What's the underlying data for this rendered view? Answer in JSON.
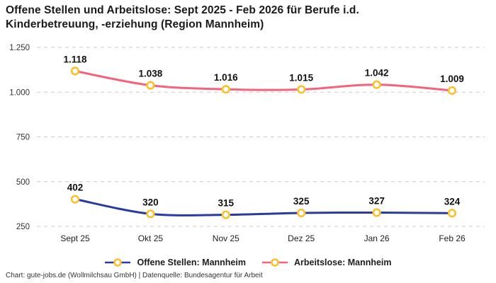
{
  "header": {
    "title_line1": "Offene Stellen und Arbeitslose: Sept 2025 - Feb 2026 für Berufe i.d.",
    "title_line2": "Kinderbetreuung, -erziehung (Region Mannheim)"
  },
  "footer": {
    "credit": "Chart: gute-jobs.de (Wollmilchsau GmbH) | Datenquelle: Bundesagentur für Arbeit"
  },
  "style": {
    "marker_color": "#fbc02d",
    "grid_color": "#c9c9c9",
    "text_color": "#1d1d1d",
    "background": "#ffffff"
  },
  "chart_data": {
    "type": "line",
    "title": "Offene Stellen und Arbeitslose: Sept 2025 - Feb 2026 für Berufe i.d. Kinderbetreuung, -erziehung (Region Mannheim)",
    "categories": [
      "Sept 25",
      "Okt 25",
      "Nov 25",
      "Dez 25",
      "Jan 26",
      "Feb 26"
    ],
    "series": [
      {
        "id": "offene-stellen",
        "name": "Offene Stellen: Mannheim",
        "color": "#2a3b9e",
        "values": [
          402,
          320,
          315,
          325,
          327,
          324
        ],
        "value_labels": [
          "402",
          "320",
          "315",
          "325",
          "327",
          "324"
        ]
      },
      {
        "id": "arbeitslose",
        "name": "Arbeitslose: Mannheim",
        "color": "#f5627b",
        "values": [
          1118,
          1038,
          1016,
          1015,
          1042,
          1009
        ],
        "value_labels": [
          "1.118",
          "1.038",
          "1.016",
          "1.015",
          "1.042",
          "1.009"
        ]
      }
    ],
    "yticks": [
      {
        "value": 250,
        "label": "250"
      },
      {
        "value": 500,
        "label": "500"
      },
      {
        "value": 750,
        "label": "750"
      },
      {
        "value": 1000,
        "label": "1.000"
      },
      {
        "value": 1250,
        "label": "1.250"
      }
    ],
    "ylim": [
      250,
      1250
    ],
    "grid": "horizontal-dashed",
    "legend_position": "bottom",
    "marker": "circle-yellow-ring"
  }
}
